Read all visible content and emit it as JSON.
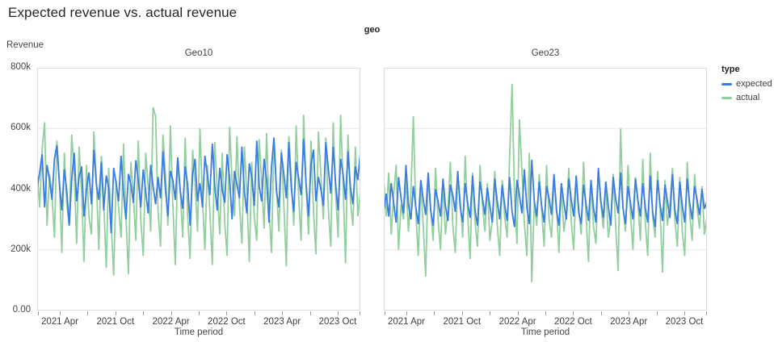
{
  "page": {
    "title": "Expected revenue vs. actual revenue"
  },
  "facet": {
    "label": "geo"
  },
  "axes": {
    "y": {
      "title": "Revenue",
      "tick_labels": [
        "800k",
        "600k",
        "400k",
        "200k",
        "0.00"
      ]
    },
    "x": {
      "title": "Time period",
      "tick_labels": [
        "2021 Apr",
        "2021 Oct",
        "2022 Apr",
        "2022 Oct",
        "2023 Apr",
        "2023 Oct"
      ]
    }
  },
  "legend": {
    "title": "type",
    "items": [
      {
        "label": "expected",
        "color": "#3b7ce0"
      },
      {
        "label": "actual",
        "color": "#93cf9e"
      }
    ]
  },
  "chart_data": {
    "type": "line",
    "title": "Expected revenue vs. actual revenue",
    "xlabel": "Time period",
    "ylabel": "Revenue",
    "facet_field": "geo",
    "x_range": [
      "2021 Jan",
      "2024 Jan"
    ],
    "x_interval": "weekly (approx.)",
    "x_tick_labels": [
      "2021 Apr",
      "2021 Oct",
      "2022 Apr",
      "2022 Oct",
      "2023 Apr",
      "2023 Oct"
    ],
    "ylim_k": [
      0,
      800
    ],
    "y_tick_step_k": 200,
    "grid": "horizontal",
    "legend_position": "top-right",
    "values_unit": "thousands of revenue units",
    "facets": [
      {
        "name": "Geo10",
        "series": [
          {
            "name": "expected",
            "color": "#3b7ce0",
            "values_k": [
              402,
              455,
              515,
              340,
              480,
              430,
              365,
              500,
              545,
              420,
              330,
              465,
              395,
              280,
              430,
              520,
              360,
              440,
              475,
              310,
              400,
              455,
              350,
              530,
              415,
              365,
              490,
              330,
              445,
              405,
              255,
              470,
              420,
              360,
              510,
              385,
              300,
              450,
              415,
              355,
              495,
              430,
              340,
              465,
              390,
              320,
              480,
              410,
              350,
              440,
              370,
              525,
              400,
              310,
              460,
              430,
              365,
              505,
              395,
              335,
              475,
              415,
              280,
              450,
              500,
              360,
              420,
              340,
              510,
              445,
              380,
              550,
              410,
              330,
              470,
              400,
              355,
              515,
              435,
              300,
              460,
              415,
              370,
              540,
              390,
              320,
              485,
              440,
              345,
              560,
              410,
              360,
              500,
              430,
              290,
              475,
              570,
              395,
              340,
              520,
              450,
              370,
              555,
              405,
              325,
              490,
              435,
              380,
              565,
              420,
              310,
              480,
              530,
              360,
              440,
              400,
              345,
              555,
              470,
              385,
              540,
              415,
              330,
              500,
              450,
              365,
              525,
              405,
              350,
              475,
              430,
              520
            ]
          },
          {
            "name": "actual",
            "color": "#93cf9e",
            "values_k": [
              455,
              340,
              530,
              620,
              280,
              450,
              380,
              240,
              560,
              430,
              190,
              520,
              350,
              280,
              580,
              460,
              220,
              540,
              390,
              160,
              480,
              310,
              250,
              590,
              430,
              200,
              510,
              360,
              140,
              470,
              290,
              115,
              430,
              340,
              240,
              550,
              310,
              120,
              490,
              380,
              230,
              560,
              300,
              180,
              520,
              410,
              260,
              670,
              640,
              330,
              210,
              580,
              450,
              280,
              610,
              350,
              150,
              500,
              390,
              240,
              570,
              310,
              170,
              530,
              420,
              260,
              600,
              370,
              200,
              480,
              330,
              150,
              555,
              400,
              250,
              520,
              290,
              180,
              605,
              430,
              310,
              575,
              350,
              220,
              540,
              380,
              160,
              490,
              310,
              230,
              565,
              420,
              270,
              585,
              330,
              190,
              560,
              400,
              260,
              530,
              350,
              145,
              575,
              440,
              280,
              610,
              370,
              230,
              645,
              410,
              250,
              560,
              330,
              185,
              590,
              450,
              300,
              570,
              340,
              210,
              620,
              380,
              240,
              645,
              420,
              155,
              580,
              360,
              280,
              540,
              310,
              390
            ]
          }
        ]
      },
      {
        "name": "Geo23",
        "series": [
          {
            "name": "expected",
            "color": "#3b7ce0",
            "values_k": [
              330,
              385,
              310,
              420,
              355,
              290,
              440,
              370,
              320,
              480,
              350,
              300,
              410,
              340,
              285,
              430,
              365,
              315,
              455,
              330,
              280,
              400,
              360,
              310,
              435,
              345,
              295,
              415,
              380,
              325,
              460,
              340,
              290,
              420,
              355,
              305,
              445,
              330,
              280,
              425,
              370,
              315,
              405,
              345,
              290,
              435,
              360,
              300,
              415,
              350,
              295,
              440,
              325,
              275,
              430,
              380,
              320,
              465,
              340,
              285,
              497,
              360,
              310,
              425,
              345,
              290,
              410,
              370,
              315,
              450,
              330,
              280,
              420,
              355,
              300,
              435,
              365,
              310,
              445,
              325,
              285,
              415,
              350,
              295,
              430,
              340,
              290,
              470,
              360,
              305,
              425,
              345,
              280,
              440,
              370,
              320,
              455,
              335,
              285,
              410,
              355,
              300,
              435,
              365,
              310,
              420,
              340,
              290,
              445,
              325,
              275,
              430,
              350,
              295,
              415,
              360,
              305,
              450,
              330,
              285,
              425,
              345,
              290,
              435,
              355,
              300,
              410,
              365,
              315,
              400,
              335,
              360
            ]
          },
          {
            "name": "actual",
            "color": "#93cf9e",
            "values_k": [
              430,
              310,
              455,
              250,
              380,
              480,
              200,
              350,
              300,
              430,
              260,
              390,
              640,
              320,
              180,
              410,
              280,
              112,
              450,
              340,
              230,
              470,
              300,
              200,
              420,
              250,
              330,
              490,
              280,
              190,
              440,
              360,
              240,
              510,
              320,
              170,
              455,
              290,
              210,
              480,
              350,
              260,
              420,
              230,
              300,
              460,
              280,
              180,
              430,
              310,
              240,
              500,
              747,
              380,
              220,
              630,
              460,
              290,
              180,
              520,
              93,
              360,
              280,
              450,
              330,
              210,
              480,
              300,
              240,
              430,
              350,
              190,
              410,
              260,
              320,
              470,
              290,
              200,
              440,
              340,
              250,
              490,
              310,
              160,
              430,
              280,
              220,
              460,
              350,
              270,
              420,
              240,
              300,
              450,
              280,
              130,
              600,
              340,
              260,
              480,
              320,
              200,
              440,
              360,
              230,
              500,
              290,
              180,
              520,
              310,
              240,
              460,
              330,
              125,
              430,
              280,
              350,
              470,
              300,
              210,
              440,
              260,
              180,
              490,
              320,
              230,
              450,
              340,
              270,
              410,
              250,
              310
            ]
          }
        ]
      }
    ]
  }
}
